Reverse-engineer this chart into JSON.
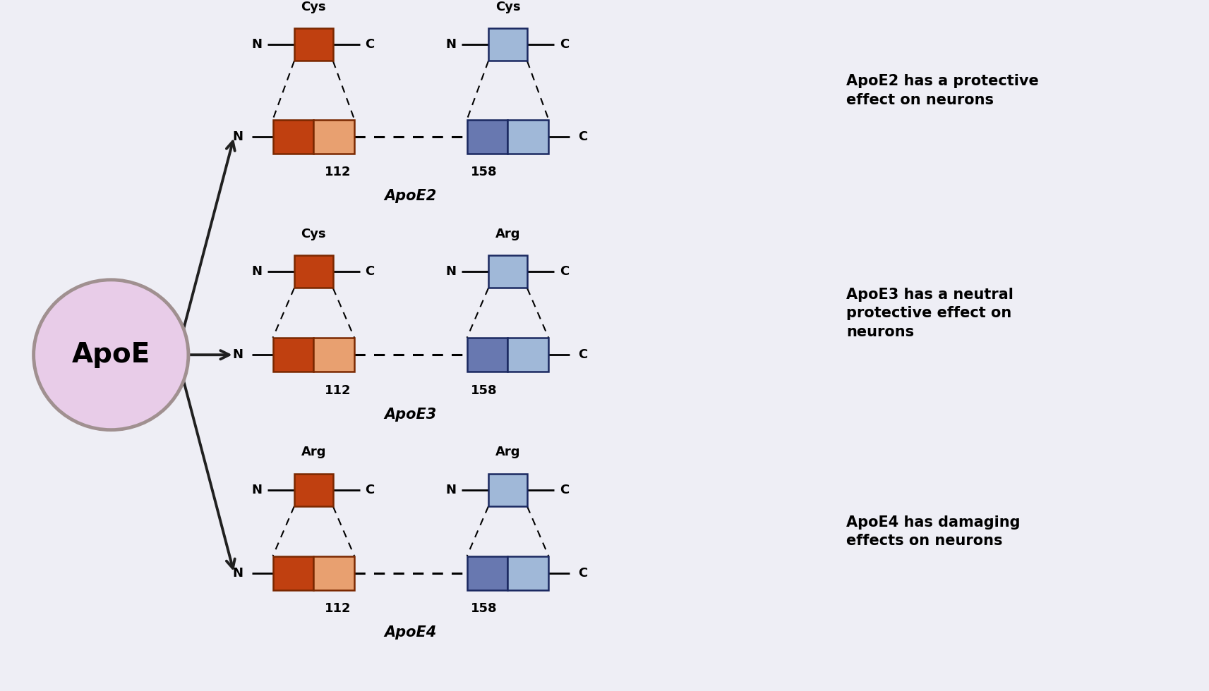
{
  "background_color": "#eeeef5",
  "circle_color": "#e8cce8",
  "circle_edge_color": "#a09090",
  "circle_text": "ApoE",
  "circle_fontsize": 28,
  "isoforms": [
    {
      "name": "ApoE2",
      "res112": "Cys",
      "res158": "Cys",
      "description": "ApoE2 has a protective\neffect on neurons"
    },
    {
      "name": "ApoE3",
      "res112": "Cys",
      "res158": "Arg",
      "description": "ApoE3 has a neutral\nprotective effect on\nneurons"
    },
    {
      "name": "ApoE4",
      "res112": "Arg",
      "res158": "Arg",
      "description": "ApoE4 has damaging\neffects on neurons"
    }
  ],
  "orange_dark": "#c04010",
  "orange_mid": "#d86030",
  "orange_light": "#e8a070",
  "blue_dark": "#404880",
  "blue_mid": "#6878b0",
  "blue_light": "#a0b8d8",
  "arrow_color": "#202020",
  "line_color": "#000000",
  "text_color": "#000000"
}
